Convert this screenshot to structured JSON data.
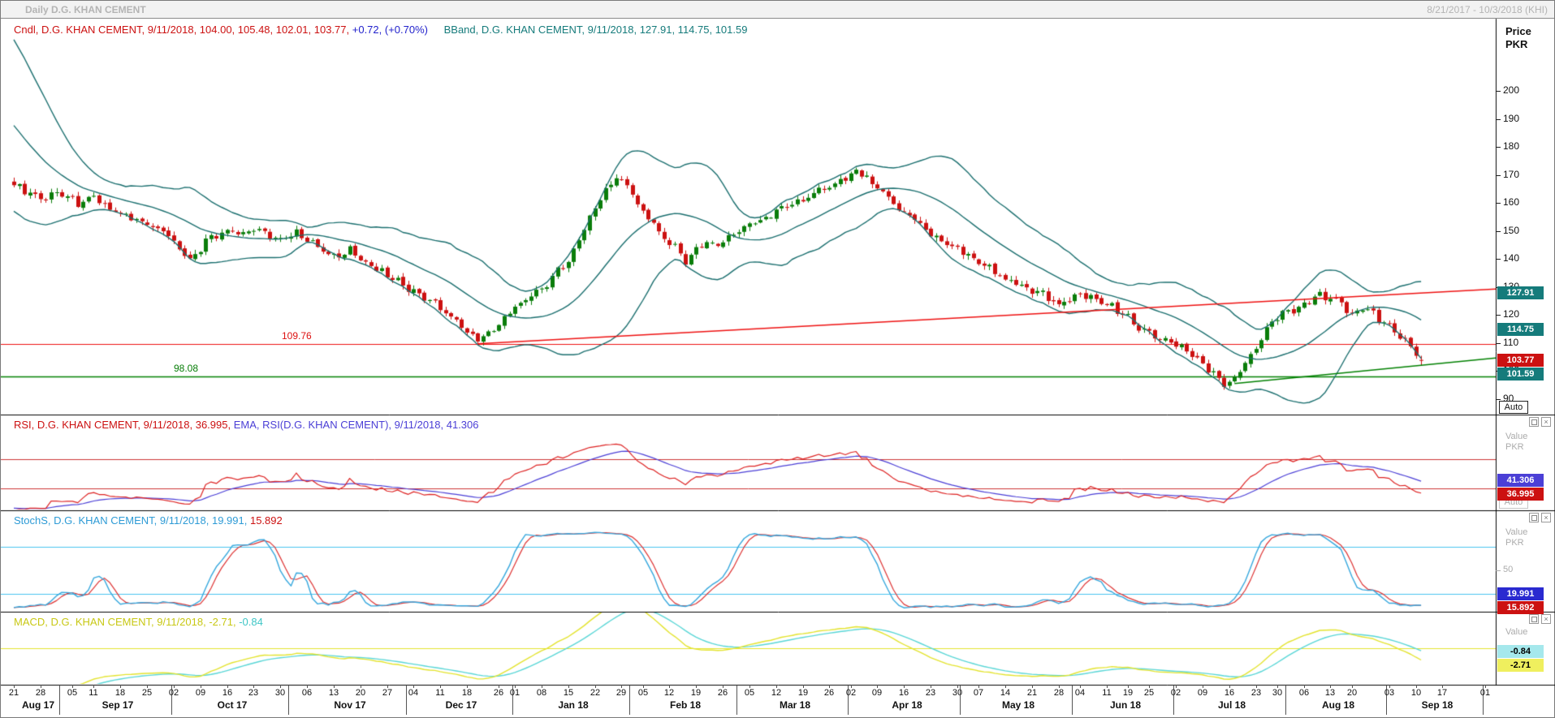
{
  "window": {
    "title": "Daily D.G. KHAN CEMENT",
    "date_range": "8/21/2017 - 10/3/2018 (KHI)"
  },
  "icons": {
    "close_glyph": "×"
  },
  "colors": {
    "candle_up": "#0a7d0a",
    "candle_down": "#cc1111",
    "bband": "#1b6f6f",
    "trend_red": "#ee1111",
    "trend_green": "#008000",
    "rsi_line": "#dd2222",
    "rsi_ema": "#4b3fd6",
    "rsi_ref": "#cc3333",
    "stoch_k": "#35a7dd",
    "stoch_d": "#dd3333",
    "stoch_ref": "#49c3ef",
    "macd_line": "#e3e32e",
    "macd_signal": "#59d6d6",
    "box_teal": "#157b7b",
    "box_red": "#cc1111",
    "box_indigo": "#4b3fd6",
    "box_blue": "#2a2ad0",
    "box_cyan": "#a5e8ec",
    "box_yellow": "#efef5e"
  },
  "main_panel": {
    "legend": {
      "cndl": "Cndl, D.G. KHAN CEMENT, 9/11/2018, 104.00, 105.48, 102.01, 103.77,",
      "change": "+0.72, (+0.70%)",
      "bband": "BBand, D.G. KHAN CEMENT, 9/11/2018, 127.91, 114.75, 101.59"
    },
    "axis": {
      "line1": "Price",
      "line2": "PKR",
      "ticks": [
        200,
        190,
        180,
        170,
        160,
        150,
        140,
        130,
        120,
        110,
        100,
        90
      ]
    },
    "auto_label": "Auto",
    "resistance_label": "109.76",
    "support_label": "98.08",
    "value_boxes": [
      {
        "value": "127.91",
        "bg": "box_teal"
      },
      {
        "value": "114.75",
        "bg": "box_teal"
      },
      {
        "value": "103.77",
        "bg": "box_red"
      },
      {
        "value": "101.59",
        "bg": "box_teal"
      }
    ]
  },
  "rsi_panel": {
    "legend": {
      "rsi": "RSI, D.G. KHAN CEMENT, 9/11/2018, 36.995,",
      "ema": "EMA, RSI(D.G. KHAN CEMENT), 9/11/2018, 41.306"
    },
    "axis": {
      "line1": "Value",
      "line2": "PKR"
    },
    "auto_label": "Auto",
    "value_boxes": [
      {
        "value": "41.306",
        "bg": "box_indigo"
      },
      {
        "value": "36.995",
        "bg": "box_red"
      }
    ]
  },
  "stoch_panel": {
    "legend": {
      "main": "StochS, D.G. KHAN CEMENT, 9/11/2018, 19.991,",
      "d": "15.892"
    },
    "axis": {
      "line1": "Value",
      "line2": "PKR",
      "mid_tick": "50"
    },
    "value_boxes": [
      {
        "value": "19.991",
        "bg": "box_blue"
      },
      {
        "value": "15.892",
        "bg": "box_red"
      }
    ]
  },
  "macd_panel": {
    "legend": {
      "main": "MACD, D.G. KHAN CEMENT, 9/11/2018, -2.71,",
      "signal": "-0.84"
    },
    "axis": {
      "line1": "Value"
    },
    "value_boxes": [
      {
        "value": "-0.84",
        "b g_unused": "",
        "bg": "box_cyan",
        "fg": "#000"
      },
      {
        "value": "-2.71",
        "bg": "box_yellow",
        "fg": "#000"
      }
    ]
  },
  "chart_data": {
    "type": "candlestick",
    "symbol": "D.G. KHAN CEMENT",
    "timeframe": "Daily",
    "exchange": "KHI",
    "date_range": [
      "8/21/2017",
      "10/3/2018"
    ],
    "last_date": "9/11/2018",
    "last_candle": {
      "open": 104.0,
      "high": 105.48,
      "low": 102.01,
      "close": 103.77,
      "change": 0.72,
      "change_pct": "+0.70%"
    },
    "bollinger": {
      "period": 20,
      "stddev": 2,
      "upper": 127.91,
      "middle": 114.75,
      "lower": 101.59
    },
    "levels": {
      "resistance": 109.76,
      "support": 98.08
    },
    "indicators": {
      "rsi": {
        "value": 36.995,
        "ema_value": 41.306,
        "overbought": 70,
        "oversold": 30
      },
      "stochastic": {
        "k": 19.991,
        "d": 15.892,
        "upper": 80,
        "lower": 20
      },
      "macd": {
        "macd": -2.71,
        "signal": -0.84
      }
    },
    "y_axis": {
      "title": "Price PKR",
      "ticks": [
        200,
        190,
        180,
        170,
        160,
        150,
        140,
        130,
        120,
        110,
        100,
        90
      ],
      "visible_range": [
        86,
        224
      ]
    },
    "n_slots": 279,
    "last_index": 264,
    "pre_history_closes": [
      215,
      213,
      211,
      209,
      206,
      203,
      200,
      197,
      194,
      191,
      188,
      185,
      182,
      179,
      176,
      174,
      172,
      170,
      169,
      168
    ],
    "price_path_anchors": [
      [
        0,
        167
      ],
      [
        2,
        164
      ],
      [
        5,
        161
      ],
      [
        8,
        164
      ],
      [
        12,
        160
      ],
      [
        15,
        163
      ],
      [
        18,
        158
      ],
      [
        22,
        155
      ],
      [
        25,
        152
      ],
      [
        28,
        150
      ],
      [
        31,
        143
      ],
      [
        33,
        140
      ],
      [
        36,
        146
      ],
      [
        40,
        150
      ],
      [
        43,
        148
      ],
      [
        46,
        151
      ],
      [
        50,
        147
      ],
      [
        53,
        149
      ],
      [
        56,
        145
      ],
      [
        60,
        141
      ],
      [
        63,
        143
      ],
      [
        66,
        138
      ],
      [
        70,
        134
      ],
      [
        73,
        131
      ],
      [
        76,
        128
      ],
      [
        79,
        124
      ],
      [
        82,
        119
      ],
      [
        85,
        114
      ],
      [
        87,
        111
      ],
      [
        89,
        113
      ],
      [
        91,
        117
      ],
      [
        93,
        121
      ],
      [
        95,
        124
      ],
      [
        98,
        128
      ],
      [
        101,
        133
      ],
      [
        104,
        140
      ],
      [
        107,
        150
      ],
      [
        109,
        158
      ],
      [
        111,
        165
      ],
      [
        113,
        169
      ],
      [
        115,
        166
      ],
      [
        117,
        160
      ],
      [
        119,
        155
      ],
      [
        121,
        150
      ],
      [
        124,
        144
      ],
      [
        126,
        139
      ],
      [
        128,
        143
      ],
      [
        130,
        147
      ],
      [
        132,
        145
      ],
      [
        134,
        148
      ],
      [
        137,
        151
      ],
      [
        140,
        154
      ],
      [
        143,
        157
      ],
      [
        146,
        159
      ],
      [
        149,
        162
      ],
      [
        152,
        165
      ],
      [
        155,
        168
      ],
      [
        158,
        171
      ],
      [
        160,
        169
      ],
      [
        162,
        165
      ],
      [
        164,
        161
      ],
      [
        166,
        158
      ],
      [
        168,
        155
      ],
      [
        170,
        152
      ],
      [
        172,
        149
      ],
      [
        175,
        146
      ],
      [
        178,
        143
      ],
      [
        181,
        139
      ],
      [
        184,
        135
      ],
      [
        187,
        132
      ],
      [
        190,
        129
      ],
      [
        193,
        127
      ],
      [
        196,
        124
      ],
      [
        198,
        126
      ],
      [
        200,
        128
      ],
      [
        203,
        126
      ],
      [
        206,
        123
      ],
      [
        209,
        119
      ],
      [
        211,
        116
      ],
      [
        213,
        114
      ],
      [
        215,
        112
      ],
      [
        217,
        110
      ],
      [
        219,
        108
      ],
      [
        221,
        105
      ],
      [
        223,
        102
      ],
      [
        225,
        99
      ],
      [
        227,
        96
      ],
      [
        229,
        98
      ],
      [
        231,
        103
      ],
      [
        233,
        109
      ],
      [
        235,
        115
      ],
      [
        237,
        119
      ],
      [
        239,
        121
      ],
      [
        241,
        123
      ],
      [
        243,
        125
      ],
      [
        245,
        127
      ],
      [
        247,
        126
      ],
      [
        249,
        124
      ],
      [
        251,
        121
      ],
      [
        253,
        123
      ],
      [
        255,
        120
      ],
      [
        257,
        117
      ],
      [
        259,
        114
      ],
      [
        261,
        111
      ],
      [
        263,
        107
      ],
      [
        264,
        104
      ]
    ],
    "trendlines": [
      {
        "color": "red",
        "from_index": 87,
        "from_price": 109.76,
        "to_index": 278,
        "to_price": 129.3
      },
      {
        "color": "green",
        "from_index": 229,
        "from_price": 95.6,
        "to_index": 278,
        "to_price": 104.7
      }
    ],
    "x_axis_months": [
      {
        "label": "Aug 17",
        "start": 0,
        "days": [
          [
            "21",
            0
          ],
          [
            "28",
            5
          ]
        ]
      },
      {
        "label": "Sep 17",
        "start": 9,
        "days": [
          [
            "05",
            11
          ],
          [
            "11",
            15
          ],
          [
            "18",
            20
          ],
          [
            "25",
            25
          ]
        ]
      },
      {
        "label": "Oct 17",
        "start": 30,
        "days": [
          [
            "02",
            30
          ],
          [
            "09",
            35
          ],
          [
            "16",
            40
          ],
          [
            "23",
            45
          ],
          [
            "30",
            50
          ]
        ]
      },
      {
        "label": "Nov 17",
        "start": 52,
        "days": [
          [
            "06",
            55
          ],
          [
            "13",
            60
          ],
          [
            "20",
            65
          ],
          [
            "27",
            70
          ]
        ]
      },
      {
        "label": "Dec 17",
        "start": 74,
        "days": [
          [
            "04",
            75
          ],
          [
            "11",
            80
          ],
          [
            "18",
            85
          ],
          [
            "26",
            91
          ]
        ]
      },
      {
        "label": "Jan 18",
        "start": 94,
        "days": [
          [
            "01",
            94
          ],
          [
            "08",
            99
          ],
          [
            "15",
            104
          ],
          [
            "22",
            109
          ],
          [
            "29",
            114
          ]
        ]
      },
      {
        "label": "Feb 18",
        "start": 116,
        "days": [
          [
            "05",
            118
          ],
          [
            "12",
            123
          ],
          [
            "19",
            128
          ],
          [
            "26",
            133
          ]
        ]
      },
      {
        "label": "Mar 18",
        "start": 136,
        "days": [
          [
            "05",
            138
          ],
          [
            "12",
            143
          ],
          [
            "19",
            148
          ],
          [
            "26",
            153
          ]
        ]
      },
      {
        "label": "Apr 18",
        "start": 157,
        "days": [
          [
            "02",
            157
          ],
          [
            "09",
            162
          ],
          [
            "16",
            167
          ],
          [
            "23",
            172
          ],
          [
            "30",
            177
          ]
        ]
      },
      {
        "label": "May 18",
        "start": 178,
        "days": [
          [
            "07",
            181
          ],
          [
            "14",
            186
          ],
          [
            "21",
            191
          ],
          [
            "28",
            196
          ]
        ]
      },
      {
        "label": "Jun 18",
        "start": 199,
        "days": [
          [
            "04",
            200
          ],
          [
            "11",
            205
          ],
          [
            "19",
            209
          ],
          [
            "25",
            213
          ]
        ]
      },
      {
        "label": "Jul 18",
        "start": 218,
        "days": [
          [
            "02",
            218
          ],
          [
            "09",
            223
          ],
          [
            "16",
            228
          ],
          [
            "23",
            233
          ],
          [
            "30",
            237
          ]
        ]
      },
      {
        "label": "Aug 18",
        "start": 239,
        "days": [
          [
            "06",
            242
          ],
          [
            "13",
            247
          ],
          [
            "20",
            251
          ]
        ]
      },
      {
        "label": "Sep 18",
        "start": 258,
        "days": [
          [
            "03",
            258
          ],
          [
            "10",
            263
          ],
          [
            "17",
            268
          ]
        ]
      },
      {
        "label": "",
        "start": 276,
        "days": [
          [
            "01",
            276
          ]
        ]
      }
    ]
  }
}
